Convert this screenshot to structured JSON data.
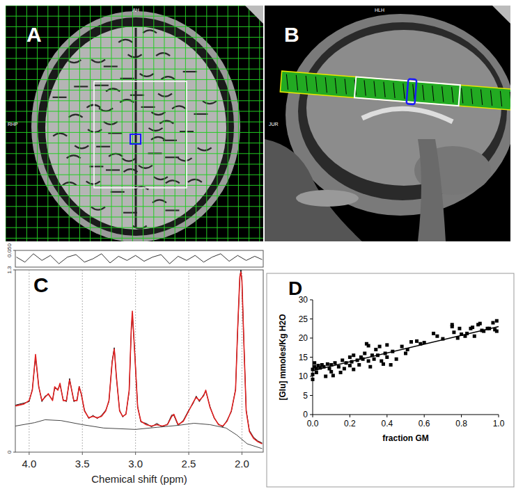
{
  "panels": {
    "A": {
      "label": "A",
      "top_text": "AH",
      "left_text": "RHP"
    },
    "B": {
      "label": "B",
      "top_text": "HLH",
      "left_text": "JUR"
    }
  },
  "chart_data": [
    {
      "type": "line",
      "tick_labels": "y",
      "xlim": [
        4.13,
        1.8
      ],
      "ylim": [
        -0.05,
        0.05
      ],
      "yticks": [
        {
          "value": 0.05,
          "label": "0.050"
        }
      ],
      "x": [
        4.12,
        4.04,
        3.96,
        3.88,
        3.8,
        3.72,
        3.64,
        3.56,
        3.48,
        3.4,
        3.32,
        3.24,
        3.16,
        3.08,
        3.0,
        2.92,
        2.84,
        2.76,
        2.68,
        2.6,
        2.52,
        2.44,
        2.36,
        2.28,
        2.2,
        2.12,
        2.04,
        1.96,
        1.88,
        1.81
      ],
      "series": [
        {
          "color": "#333333",
          "values": [
            0.01,
            -0.02,
            0.03,
            -0.01,
            0.02,
            -0.03,
            0.01,
            0.025,
            -0.02,
            0.0,
            0.03,
            -0.025,
            0.015,
            -0.01,
            0.02,
            -0.015,
            0.01,
            0.025,
            -0.03,
            0.015,
            -0.01,
            0.02,
            -0.02,
            0.01,
            0.03,
            -0.015,
            0.02,
            -0.01,
            0.015,
            -0.005
          ]
        }
      ]
    },
    {
      "type": "line",
      "title": "C",
      "xlabel": "Chemical shift (ppm)",
      "grid": true,
      "xlim": [
        4.13,
        1.8
      ],
      "ylim": [
        0,
        1.3
      ],
      "xticks": [
        {
          "value": 4,
          "label": "4.0"
        },
        {
          "value": 3.5,
          "label": "3.5"
        },
        {
          "value": 3,
          "label": "3.0"
        },
        {
          "value": 2.5,
          "label": "2.5"
        },
        {
          "value": 2,
          "label": "2.0"
        }
      ],
      "yticks": [
        0,
        1.3
      ],
      "x": [
        4.13,
        4.05,
        4.0,
        3.97,
        3.94,
        3.91,
        3.88,
        3.85,
        3.82,
        3.78,
        3.76,
        3.73,
        3.71,
        3.68,
        3.65,
        3.62,
        3.58,
        3.55,
        3.53,
        3.51,
        3.48,
        3.44,
        3.4,
        3.36,
        3.32,
        3.28,
        3.25,
        3.22,
        3.2,
        3.18,
        3.15,
        3.12,
        3.09,
        3.06,
        3.04,
        3.03,
        3.01,
        2.98,
        2.95,
        2.9,
        2.85,
        2.8,
        2.75,
        2.7,
        2.66,
        2.64,
        2.6,
        2.55,
        2.5,
        2.46,
        2.43,
        2.4,
        2.36,
        2.34,
        2.3,
        2.26,
        2.22,
        2.18,
        2.14,
        2.1,
        2.06,
        2.04,
        2.02,
        2.01,
        2.0,
        1.98,
        1.96,
        1.93,
        1.89,
        1.85,
        1.81
      ],
      "series": [
        {
          "color": "#000000",
          "values": [
            0.335,
            0.35,
            0.36,
            0.45,
            0.68,
            0.47,
            0.36,
            0.4,
            0.41,
            0.375,
            0.455,
            0.45,
            0.48,
            0.375,
            0.36,
            0.525,
            0.36,
            0.375,
            0.47,
            0.41,
            0.3,
            0.24,
            0.262,
            0.24,
            0.262,
            0.3,
            0.36,
            0.65,
            0.745,
            0.53,
            0.3,
            0.25,
            0.275,
            0.43,
            0.87,
            0.99,
            0.745,
            0.325,
            0.215,
            0.205,
            0.18,
            0.205,
            0.18,
            0.2,
            0.265,
            0.262,
            0.19,
            0.228,
            0.3,
            0.345,
            0.4,
            0.36,
            0.41,
            0.435,
            0.325,
            0.24,
            0.2,
            0.18,
            0.228,
            0.288,
            0.45,
            0.87,
            1.24,
            1.3,
            1.215,
            0.745,
            0.3,
            0.155,
            0.105,
            0.08,
            0.065
          ]
        },
        {
          "color": "#e02020",
          "values": [
            0.329,
            0.343,
            0.368,
            0.442,
            0.697,
            0.466,
            0.368,
            0.392,
            0.417,
            0.368,
            0.466,
            0.442,
            0.491,
            0.368,
            0.368,
            0.515,
            0.368,
            0.368,
            0.466,
            0.417,
            0.294,
            0.245,
            0.255,
            0.245,
            0.255,
            0.294,
            0.368,
            0.638,
            0.736,
            0.54,
            0.294,
            0.255,
            0.27,
            0.442,
            0.883,
            1.006,
            0.736,
            0.319,
            0.221,
            0.196,
            0.186,
            0.196,
            0.186,
            0.196,
            0.255,
            0.27,
            0.196,
            0.221,
            0.294,
            0.353,
            0.392,
            0.368,
            0.402,
            0.442,
            0.319,
            0.245,
            0.196,
            0.186,
            0.221,
            0.294,
            0.442,
            0.883,
            1.251,
            1.285,
            1.226,
            0.736,
            0.294,
            0.147,
            0.098,
            0.074,
            0.059
          ]
        },
        {
          "color": "#444444",
          "x": [
            4.13,
            3.95,
            3.85,
            3.7,
            3.5,
            3.3,
            3.0,
            2.8,
            2.6,
            2.45,
            2.3,
            2.15,
            2.05,
            1.95,
            1.81
          ],
          "values": [
            0.186,
            0.21,
            0.231,
            0.225,
            0.196,
            0.172,
            0.162,
            0.177,
            0.191,
            0.206,
            0.196,
            0.172,
            0.123,
            0.059,
            0.025
          ]
        }
      ]
    },
    {
      "type": "scatter",
      "title": "D",
      "xlabel": "fraction GM",
      "ylabel": "[Glu] mmoles/Kg H2O",
      "xlim": [
        0,
        1
      ],
      "ylim": [
        0,
        30
      ],
      "xticks": [
        {
          "value": 0,
          "label": "0.0"
        },
        {
          "value": 0.2,
          "label": "0.2"
        },
        {
          "value": 0.4,
          "label": "0.4"
        },
        {
          "value": 0.6,
          "label": "0.6"
        },
        {
          "value": 0.8,
          "label": "0.8"
        },
        {
          "value": 1,
          "label": "1.0"
        }
      ],
      "yticks": [
        0,
        5,
        10,
        15,
        20,
        25,
        30
      ],
      "series": [
        {
          "type": "scatter",
          "marker": "square",
          "color": "#000000",
          "x": [
            0.0,
            0.0,
            0.0,
            0.01,
            0.01,
            0.02,
            0.02,
            0.03,
            0.04,
            0.05,
            0.06,
            0.07,
            0.08,
            0.09,
            0.1,
            0.1,
            0.11,
            0.12,
            0.14,
            0.15,
            0.16,
            0.17,
            0.18,
            0.2,
            0.2,
            0.21,
            0.22,
            0.22,
            0.24,
            0.25,
            0.26,
            0.27,
            0.28,
            0.29,
            0.3,
            0.3,
            0.31,
            0.32,
            0.33,
            0.34,
            0.35,
            0.36,
            0.37,
            0.38,
            0.39,
            0.4,
            0.4,
            0.42,
            0.43,
            0.45,
            0.48,
            0.5,
            0.51,
            0.53,
            0.56,
            0.58,
            0.6,
            0.65,
            0.67,
            0.7,
            0.75,
            0.75,
            0.76,
            0.78,
            0.79,
            0.8,
            0.82,
            0.83,
            0.85,
            0.86,
            0.87,
            0.89,
            0.9,
            0.91,
            0.92,
            0.94,
            0.95,
            0.97,
            0.98,
            0.99,
            0.99
          ],
          "values": [
            9.2,
            10.5,
            11.8,
            12.5,
            13.5,
            12.0,
            11.0,
            12.8,
            12.2,
            13.0,
            12.5,
            10.0,
            13.2,
            12.0,
            11.2,
            13.0,
            10.2,
            13.5,
            12.5,
            11.0,
            14.2,
            12.0,
            13.5,
            15.0,
            12.8,
            13.8,
            15.5,
            11.8,
            14.2,
            13.0,
            15.0,
            14.5,
            16.0,
            18.5,
            14.0,
            18.0,
            12.5,
            15.5,
            14.5,
            17.0,
            15.5,
            17.8,
            14.0,
            13.2,
            16.0,
            18.2,
            15.0,
            13.0,
            16.5,
            14.5,
            17.8,
            16.0,
            17.0,
            19.0,
            19.2,
            18.5,
            18.8,
            21.2,
            20.5,
            19.8,
            23.0,
            23.5,
            21.5,
            20.0,
            22.5,
            21.0,
            20.5,
            21.2,
            22.5,
            22.8,
            20.5,
            23.5,
            23.8,
            22.0,
            21.8,
            22.5,
            22.5,
            24.0,
            22.2,
            24.5,
            21.8
          ]
        },
        {
          "type": "line",
          "color": "#000000",
          "x": [
            0,
            1
          ],
          "values": [
            11.5,
            23
          ]
        }
      ]
    }
  ]
}
